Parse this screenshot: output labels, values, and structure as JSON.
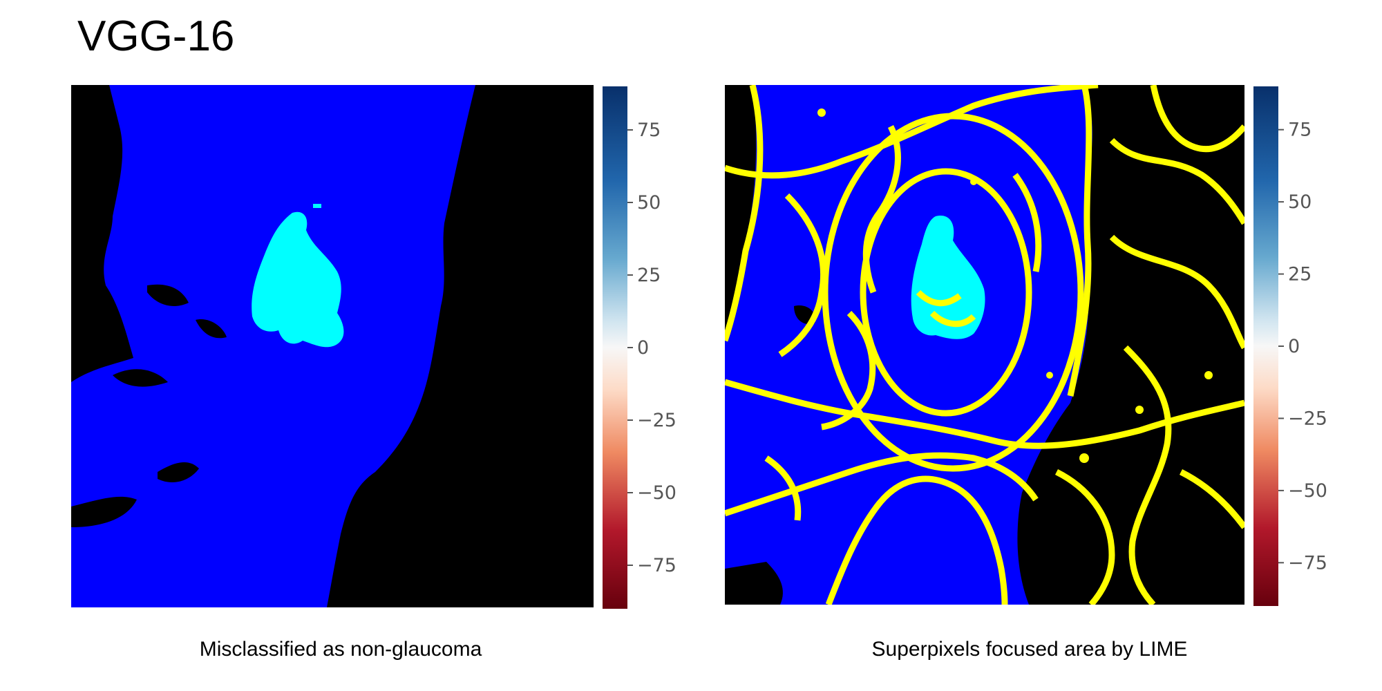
{
  "title": "VGG-16",
  "colors": {
    "background": "#000000",
    "region": "#0000ff",
    "highlight": "#00ffff",
    "boundary": "#ffff00",
    "colorbar_top": "#08306b",
    "colorbar_mid": "#f7f7f7",
    "colorbar_bottom": "#67000d"
  },
  "colorbar": {
    "range": [
      -90,
      90
    ],
    "ticks": [
      75,
      50,
      25,
      0,
      -25,
      -50,
      -75
    ],
    "tick_labels": [
      "75",
      "50",
      "25",
      "0",
      "−25",
      "−50",
      "−75"
    ],
    "colormap": "RdBu"
  },
  "panels": [
    {
      "caption": "Misclassified as non-glaucoma",
      "image": "fundus-explanation-mask",
      "boundaries": false
    },
    {
      "caption": "Superpixels focused area by LIME",
      "image": "fundus-superpixel-boundaries",
      "boundaries": true
    }
  ]
}
